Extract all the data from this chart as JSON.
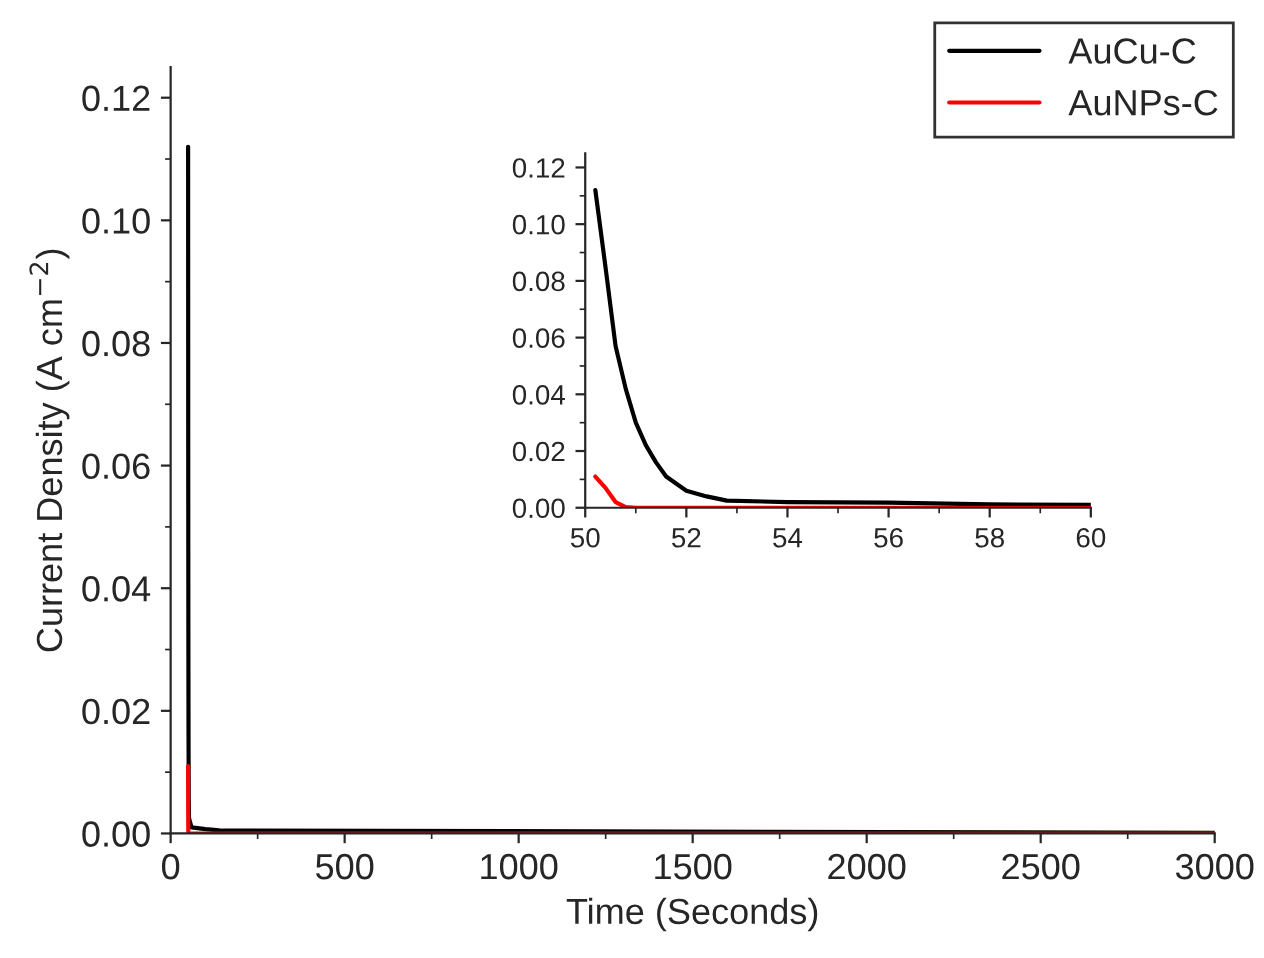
{
  "chart_data": [
    {
      "type": "line",
      "xlabel": "Time (Seconds)",
      "ylabel": "Current Density (A cm$^{−2}$)",
      "xlim": [
        0,
        3000
      ],
      "ylim": [
        0,
        0.125
      ],
      "xticks": [
        0,
        500,
        1000,
        1500,
        2000,
        2500,
        3000
      ],
      "yticks": [
        {
          "value": 0,
          "label": "0.00"
        },
        {
          "value": 0.02,
          "label": "0.02"
        },
        {
          "value": 0.04,
          "label": "0.04"
        },
        {
          "value": 0.06,
          "label": "0.06"
        },
        {
          "value": 0.08,
          "label": "0.08"
        },
        {
          "value": 0.1,
          "label": "0.10"
        },
        {
          "value": 0.12,
          "label": "0.12"
        }
      ],
      "legend": "top right",
      "grid": false,
      "series": [
        {
          "name": "AuCu-C",
          "color": "#000000",
          "x": [
            50.2,
            50.4,
            50.6,
            50.8,
            51,
            51.4,
            52,
            52.8,
            56,
            60,
            100,
            140,
            3000
          ],
          "values": [
            0.112,
            0.085,
            0.057,
            0.042,
            0.03,
            0.016,
            0.006,
            0.0025,
            0.0018,
            0.001,
            0.0007,
            0.0005,
            0.0001
          ]
        },
        {
          "name": "AuNPs-C",
          "color": "#ff0000",
          "x": [
            50.2,
            50.4,
            50.6,
            50.8,
            51,
            60,
            3000
          ],
          "values": [
            0.011,
            0.007,
            0.002,
            0.0002,
            0,
            0,
            0
          ]
        }
      ]
    },
    {
      "type": "line",
      "xlim": [
        50,
        60
      ],
      "ylim": [
        0,
        0.125
      ],
      "xticks": [
        50,
        52,
        54,
        56,
        58,
        60
      ],
      "yticks": [
        {
          "value": 0,
          "label": "0.00"
        },
        {
          "value": 0.02,
          "label": "0.02"
        },
        {
          "value": 0.04,
          "label": "0.04"
        },
        {
          "value": 0.06,
          "label": "0.06"
        },
        {
          "value": 0.08,
          "label": "0.08"
        },
        {
          "value": 0.1,
          "label": "0.10"
        },
        {
          "value": 0.12,
          "label": "0.12"
        }
      ],
      "grid": false,
      "series": [
        {
          "color": "#000000",
          "x": [
            50.2,
            50.4,
            50.6,
            50.8,
            51,
            51.2,
            51.4,
            51.6,
            52,
            52.4,
            52.8,
            54,
            56,
            58,
            60
          ],
          "values": [
            0.112,
            0.085,
            0.057,
            0.042,
            0.03,
            0.022,
            0.016,
            0.011,
            0.006,
            0.004,
            0.0025,
            0.002,
            0.0018,
            0.0012,
            0.001
          ]
        },
        {
          "color": "#ff0000",
          "x": [
            50.2,
            50.4,
            50.6,
            50.8,
            51,
            60
          ],
          "values": [
            0.011,
            0.007,
            0.002,
            0.0002,
            0,
            0
          ]
        }
      ]
    }
  ]
}
